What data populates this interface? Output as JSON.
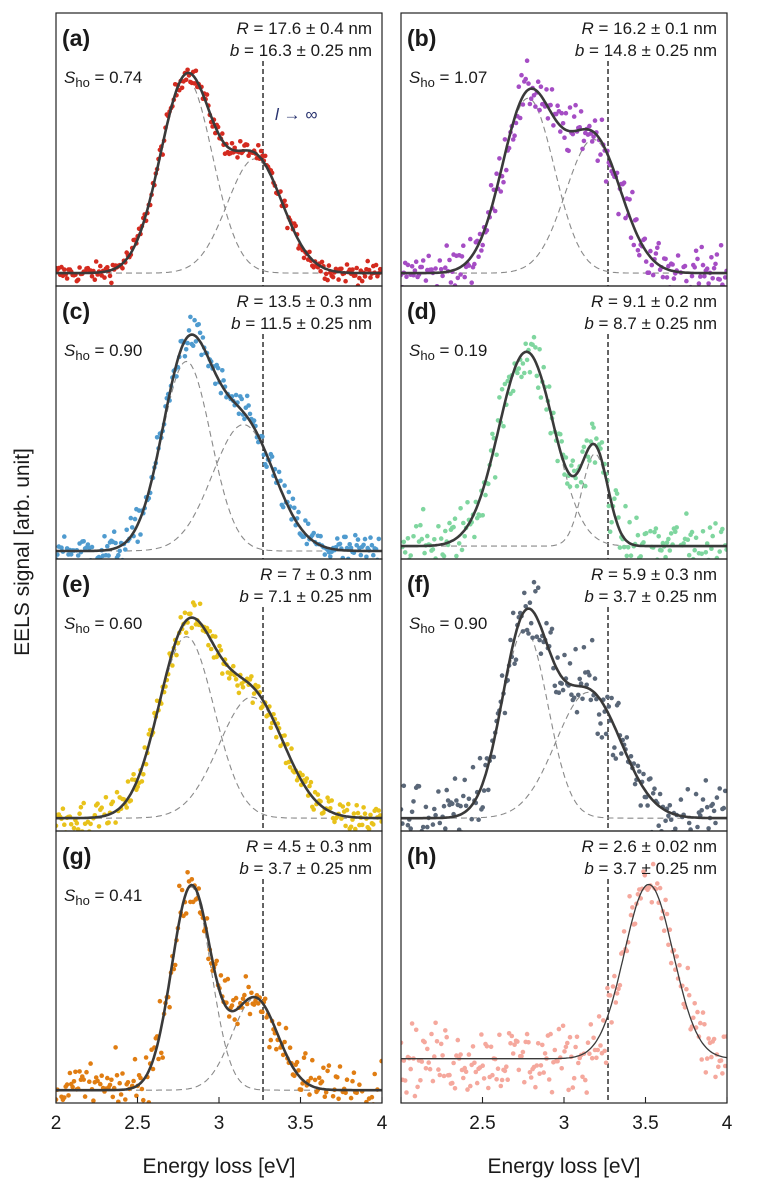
{
  "figure": {
    "ylabel": "EELS signal [arb. unit]",
    "xlabel": "Energy loss [eV]",
    "x_ticks": [
      "2",
      "2.5",
      "3",
      "3.5",
      "4"
    ],
    "limit_label": "l → ∞"
  },
  "chart_data": [
    {
      "type": "scatter",
      "panel": "(a)",
      "R": "17.6 ± 0.4 nm",
      "b": "16.3 ± 0.25 nm",
      "S_ho": "0.74",
      "xlim": [
        2,
        4
      ],
      "vline_x": 3.27,
      "color": "#d42a1f",
      "show_limit_label": true,
      "fit_style": "thick",
      "noise": 0.02,
      "peaks": [
        {
          "center": 2.8,
          "width": 0.16,
          "amp": 0.8
        },
        {
          "center": 3.22,
          "width": 0.17,
          "amp": 0.47
        }
      ],
      "baseline": 0.02
    },
    {
      "type": "scatter",
      "panel": "(b)",
      "R": "16.2 ± 0.1 nm",
      "b": "14.8 ± 0.25 nm",
      "S_ho": "1.07",
      "xlim": [
        2,
        4
      ],
      "vline_x": 3.27,
      "color": "#a54dc4",
      "fit_style": "thick",
      "noise": 0.05,
      "peaks": [
        {
          "center": 2.78,
          "width": 0.16,
          "amp": 0.72
        },
        {
          "center": 3.18,
          "width": 0.17,
          "amp": 0.55
        }
      ],
      "baseline": 0.02
    },
    {
      "type": "scatter",
      "panel": "(c)",
      "R": "13.5 ± 0.3 nm",
      "b": "11.5 ± 0.25 nm",
      "S_ho": "0.90",
      "xlim": [
        2,
        4
      ],
      "vline_x": 3.27,
      "color": "#4f9bcf",
      "fit_style": "thick",
      "noise": 0.035,
      "peaks": [
        {
          "center": 2.8,
          "width": 0.15,
          "amp": 0.78
        },
        {
          "center": 3.15,
          "width": 0.19,
          "amp": 0.52
        }
      ],
      "baseline": 0.0
    },
    {
      "type": "scatter",
      "panel": "(d)",
      "R": "9.1 ± 0.2 nm",
      "b": "8.7 ± 0.25 nm",
      "S_ho": "0.19",
      "xlim": [
        2,
        4
      ],
      "vline_x": 3.27,
      "color": "#7fd69f",
      "fit_style": "thick",
      "noise": 0.06,
      "peaks": [
        {
          "center": 2.77,
          "width": 0.17,
          "amp": 0.8
        },
        {
          "center": 3.19,
          "width": 0.08,
          "amp": 0.38
        }
      ],
      "baseline": 0.02
    },
    {
      "type": "scatter",
      "panel": "(e)",
      "R": "7 ± 0.3 nm",
      "b": "7.1 ± 0.25 nm",
      "S_ho": "0.60",
      "xlim": [
        2,
        4
      ],
      "vline_x": 3.27,
      "color": "#e8c21a",
      "fit_style": "thick",
      "noise": 0.035,
      "peaks": [
        {
          "center": 2.8,
          "width": 0.17,
          "amp": 0.75
        },
        {
          "center": 3.2,
          "width": 0.2,
          "amp": 0.5
        }
      ],
      "baseline": 0.02
    },
    {
      "type": "scatter",
      "panel": "(f)",
      "R": "5.9 ± 0.3 nm",
      "b": "3.7 ± 0.25 nm",
      "S_ho": "0.90",
      "xlim": [
        2,
        4
      ],
      "vline_x": 3.27,
      "color": "#5a6778",
      "fit_style": "thick",
      "noise": 0.08,
      "peaks": [
        {
          "center": 2.76,
          "width": 0.14,
          "amp": 0.78
        },
        {
          "center": 3.15,
          "width": 0.2,
          "amp": 0.52
        }
      ],
      "baseline": 0.02
    },
    {
      "type": "scatter",
      "panel": "(g)",
      "R": "4.5 ± 0.3 nm",
      "b": "3.7 ± 0.25 nm",
      "S_ho": "0.41",
      "xlim": [
        2,
        4
      ],
      "vline_x": 3.27,
      "color": "#e07d12",
      "fit_style": "thick",
      "noise": 0.06,
      "peaks": [
        {
          "center": 2.83,
          "width": 0.12,
          "amp": 0.84
        },
        {
          "center": 3.22,
          "width": 0.14,
          "amp": 0.38
        }
      ],
      "baseline": 0.02
    },
    {
      "type": "scatter",
      "panel": "(h)",
      "R": "2.6 ± 0.02 nm",
      "b": "3.7 ± 0.25 nm",
      "xlim": [
        2,
        4
      ],
      "vline_x": 3.27,
      "color": "#f5a89d",
      "fit_style": "thin",
      "noise": 0.07,
      "peaks": [
        {
          "center": 3.52,
          "width": 0.15,
          "amp": 0.72
        }
      ],
      "baseline": 0.15
    }
  ]
}
